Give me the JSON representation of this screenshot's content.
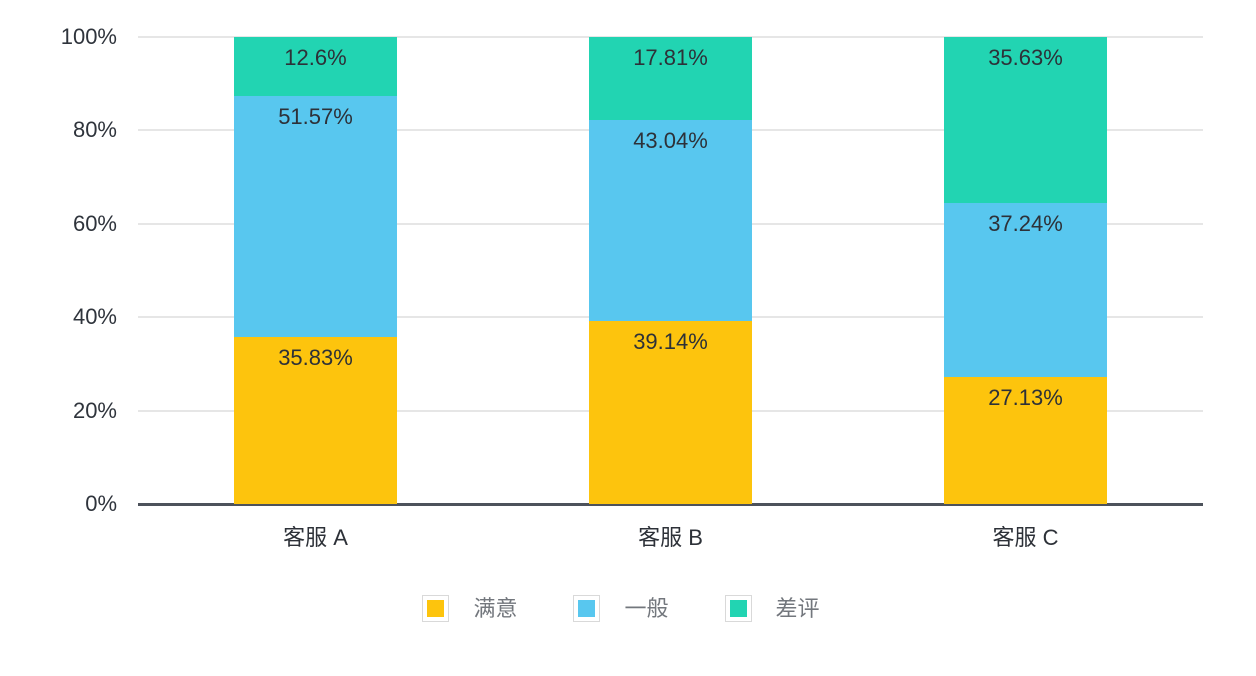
{
  "chart_data": {
    "type": "bar",
    "variant": "percentage-stacked-column",
    "title": "",
    "categories": [
      "客服 A",
      "客服 B",
      "客服 C"
    ],
    "series": [
      {
        "key": "satisfied",
        "name": "满意",
        "color": "#FDC40D",
        "values": [
          35.83,
          39.14,
          27.13
        ],
        "labels": [
          "35.83%",
          "39.14%",
          "27.13%"
        ]
      },
      {
        "key": "neutral",
        "name": "一般",
        "color": "#58C7EF",
        "values": [
          51.57,
          43.04,
          37.24
        ],
        "labels": [
          "51.57%",
          "43.04%",
          "37.24%"
        ]
      },
      {
        "key": "negative",
        "name": "差评",
        "color": "#22D4B2",
        "values": [
          12.6,
          17.81,
          35.63
        ],
        "labels": [
          "12.6%",
          "17.81%",
          "35.63%"
        ]
      }
    ],
    "y_axis": {
      "min": 0,
      "max": 100,
      "tick_values": [
        0,
        20,
        40,
        60,
        80,
        100
      ],
      "tick_labels": [
        "0%",
        "20%",
        "40%",
        "60%",
        "80%",
        "100%"
      ]
    },
    "legend": {
      "position": "bottom",
      "items": [
        "满意",
        "一般",
        "差评"
      ]
    },
    "grid": true
  },
  "style": {
    "grid_color": "#e6e6e6",
    "axis_color": "#4d525b",
    "tick_text_color": "#2f343c",
    "value_label_color": "#2d3138",
    "category_label_color": "#2d3138",
    "legend_text_color": "#73777d",
    "legend_swatch_border": "#d9d9d9",
    "background": "#ffffff"
  }
}
